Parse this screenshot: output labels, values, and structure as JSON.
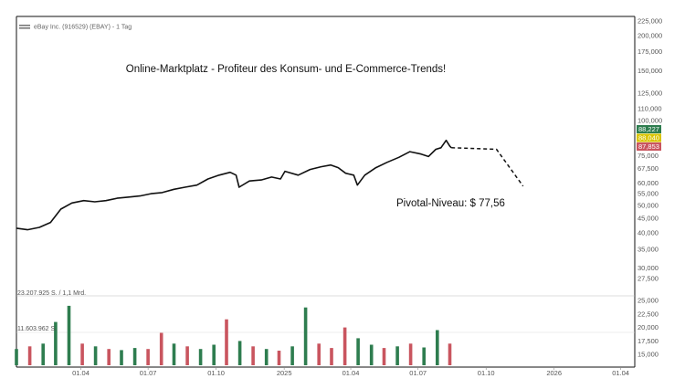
{
  "header": {
    "instrument": "eBay Inc. (916529) (EBAY) - 1 Tag"
  },
  "annotations": {
    "headline": "Online-Marktplatz - Profiteur des Konsum- und E-Commerce-Trends!",
    "pivot_label": "Pivotal-Niveau: $ 77,56"
  },
  "price_badges": [
    {
      "label": "88,227",
      "value": 88.227,
      "color": "#2e7d4f"
    },
    {
      "label": "88,040",
      "value": 88.04,
      "color": "#d9c400"
    },
    {
      "label": "87,853",
      "value": 87.853,
      "color": "#c9555f"
    }
  ],
  "price_axis_ticks": [
    {
      "label": "225,000",
      "value": 225
    },
    {
      "label": "200,000",
      "value": 200
    },
    {
      "label": "175,000",
      "value": 175
    },
    {
      "label": "150,000",
      "value": 150
    },
    {
      "label": "125,000",
      "value": 125
    },
    {
      "label": "110,000",
      "value": 110
    },
    {
      "label": "100,000",
      "value": 100
    },
    {
      "label": "75,000",
      "value": 75
    },
    {
      "label": "67,500",
      "value": 67.5
    },
    {
      "label": "60,000",
      "value": 60
    },
    {
      "label": "55,000",
      "value": 55
    },
    {
      "label": "50,000",
      "value": 50
    },
    {
      "label": "45,000",
      "value": 45
    },
    {
      "label": "40,000",
      "value": 40
    },
    {
      "label": "35,000",
      "value": 35
    },
    {
      "label": "30,000",
      "value": 30
    },
    {
      "label": "27,500",
      "value": 27.5
    }
  ],
  "volume_axis_ticks": [
    {
      "label": "25,000",
      "value": 25000000
    },
    {
      "label": "22,500",
      "value": 22500000
    },
    {
      "label": "20,000",
      "value": 20000000
    },
    {
      "label": "17,500",
      "value": 17500000
    },
    {
      "label": "15,000",
      "value": 15000000
    }
  ],
  "volume_labels": {
    "upper": "23.207.925 S. / 1,1 Mrd.",
    "lower": "11.603.962 S."
  },
  "x_axis_ticks": [
    {
      "label": "01.04",
      "date": "2024-04-01"
    },
    {
      "label": "01.07",
      "date": "2024-07-01"
    },
    {
      "label": "01.10",
      "date": "2024-10-01"
    },
    {
      "label": "2025",
      "date": "2025-01-01"
    },
    {
      "label": "01.04",
      "date": "2025-04-01"
    },
    {
      "label": "01.07",
      "date": "2025-07-01"
    },
    {
      "label": "01.10",
      "date": "2025-10-01"
    },
    {
      "label": "2026",
      "date": "2026-01-01"
    },
    {
      "label": "01.04",
      "date": "2026-04-01"
    }
  ],
  "chart_data": [
    {
      "type": "line",
      "scale": "log",
      "ylim": [
        25,
        230
      ],
      "xlim": [
        "2024-01-05",
        "2026-04-20"
      ],
      "series": [
        {
          "kind": "price",
          "color": "#111111",
          "points": [
            {
              "x": "2024-01-05",
              "y": 41.5
            },
            {
              "x": "2024-01-20",
              "y": 41.0
            },
            {
              "x": "2024-02-05",
              "y": 41.8
            },
            {
              "x": "2024-02-20",
              "y": 43.5
            },
            {
              "x": "2024-03-05",
              "y": 48.5
            },
            {
              "x": "2024-03-20",
              "y": 51.0
            },
            {
              "x": "2024-04-05",
              "y": 52.0
            },
            {
              "x": "2024-04-20",
              "y": 51.5
            },
            {
              "x": "2024-05-05",
              "y": 52.0
            },
            {
              "x": "2024-05-20",
              "y": 53.0
            },
            {
              "x": "2024-06-05",
              "y": 53.5
            },
            {
              "x": "2024-06-20",
              "y": 54.0
            },
            {
              "x": "2024-07-05",
              "y": 55.0
            },
            {
              "x": "2024-07-20",
              "y": 55.5
            },
            {
              "x": "2024-08-05",
              "y": 57.0
            },
            {
              "x": "2024-08-20",
              "y": 58.0
            },
            {
              "x": "2024-09-05",
              "y": 59.0
            },
            {
              "x": "2024-09-20",
              "y": 62.0
            },
            {
              "x": "2024-10-05",
              "y": 64.0
            },
            {
              "x": "2024-10-20",
              "y": 65.5
            },
            {
              "x": "2024-10-28",
              "y": 64.0
            },
            {
              "x": "2024-11-01",
              "y": 58.0
            },
            {
              "x": "2024-11-15",
              "y": 61.0
            },
            {
              "x": "2024-12-01",
              "y": 61.5
            },
            {
              "x": "2024-12-15",
              "y": 63.0
            },
            {
              "x": "2024-12-27",
              "y": 62.0
            },
            {
              "x": "2025-01-02",
              "y": 66.0
            },
            {
              "x": "2025-01-20",
              "y": 64.0
            },
            {
              "x": "2025-02-05",
              "y": 67.0
            },
            {
              "x": "2025-02-20",
              "y": 68.5
            },
            {
              "x": "2025-03-05",
              "y": 69.5
            },
            {
              "x": "2025-03-15",
              "y": 68.0
            },
            {
              "x": "2025-03-25",
              "y": 65.0
            },
            {
              "x": "2025-04-05",
              "y": 64.0
            },
            {
              "x": "2025-04-10",
              "y": 59.0
            },
            {
              "x": "2025-04-20",
              "y": 64.0
            },
            {
              "x": "2025-05-05",
              "y": 68.0
            },
            {
              "x": "2025-05-20",
              "y": 71.0
            },
            {
              "x": "2025-06-05",
              "y": 74.0
            },
            {
              "x": "2025-06-20",
              "y": 77.5
            },
            {
              "x": "2025-07-05",
              "y": 76.0
            },
            {
              "x": "2025-07-15",
              "y": 74.5
            },
            {
              "x": "2025-07-25",
              "y": 79.0
            },
            {
              "x": "2025-08-01",
              "y": 80.0
            },
            {
              "x": "2025-08-08",
              "y": 85.0
            },
            {
              "x": "2025-08-13",
              "y": 81.0
            },
            {
              "x": "2025-08-15",
              "y": 80.0
            }
          ]
        },
        {
          "kind": "projection",
          "style": "dashed",
          "color": "#111111",
          "points": [
            {
              "x": "2025-08-15",
              "y": 80.0
            },
            {
              "x": "2025-10-15",
              "y": 79.0
            },
            {
              "x": "2025-11-20",
              "y": 58.5
            }
          ]
        }
      ]
    },
    {
      "type": "bar",
      "kind": "volume",
      "ylim": [
        13000000,
        25500000
      ],
      "up_color": "#2e7d4f",
      "down_color": "#c9555f",
      "x": [
        "2024-01-05",
        "2024-01-23",
        "2024-02-10",
        "2024-02-27",
        "2024-03-16",
        "2024-04-03",
        "2024-04-21",
        "2024-05-09",
        "2024-05-26",
        "2024-06-13",
        "2024-07-01",
        "2024-07-19",
        "2024-08-05",
        "2024-08-23",
        "2024-09-10",
        "2024-09-28",
        "2024-10-15",
        "2024-11-02",
        "2024-11-20",
        "2024-12-08",
        "2024-12-25",
        "2025-01-12",
        "2025-01-30",
        "2025-02-17",
        "2025-03-06",
        "2025-03-24",
        "2025-04-11",
        "2025-04-29",
        "2025-05-16",
        "2025-06-03",
        "2025-06-21",
        "2025-07-09",
        "2025-07-27",
        "2025-08-13"
      ],
      "values": [
        16000000,
        16500000,
        17000000,
        21000000,
        24000000,
        17000000,
        16500000,
        16000000,
        15800000,
        16200000,
        16000000,
        19000000,
        17000000,
        16500000,
        16000000,
        16800000,
        21500000,
        17500000,
        16500000,
        16000000,
        15700000,
        16500000,
        23700000,
        17000000,
        16200000,
        20000000,
        18000000,
        16800000,
        16200000,
        16500000,
        17000000,
        16300000,
        19500000,
        17000000
      ],
      "direction": [
        "up",
        "down",
        "up",
        "up",
        "up",
        "down",
        "up",
        "down",
        "up",
        "up",
        "down",
        "down",
        "up",
        "down",
        "up",
        "up",
        "down",
        "up",
        "down",
        "up",
        "down",
        "up",
        "up",
        "down",
        "down",
        "down",
        "up",
        "up",
        "down",
        "up",
        "down",
        "up",
        "up",
        "down"
      ]
    }
  ]
}
